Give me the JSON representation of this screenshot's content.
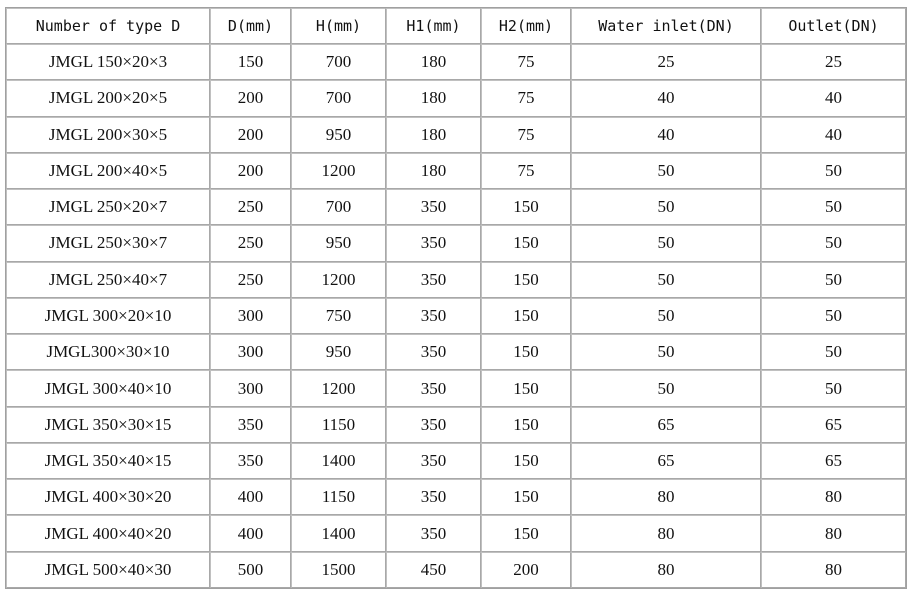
{
  "table": {
    "headers": [
      "Number of type D",
      "D(mm)",
      "H(mm)",
      "H1(mm)",
      "H2(mm)",
      "Water inlet(DN)",
      "Outlet(DN)"
    ],
    "rows": [
      [
        "JMGL 150×20×3",
        "150",
        "700",
        "180",
        "75",
        "25",
        "25"
      ],
      [
        "JMGL 200×20×5",
        "200",
        "700",
        "180",
        "75",
        "40",
        "40"
      ],
      [
        "JMGL 200×30×5",
        "200",
        "950",
        "180",
        "75",
        "40",
        "40"
      ],
      [
        "JMGL 200×40×5",
        "200",
        "1200",
        "180",
        "75",
        "50",
        "50"
      ],
      [
        "JMGL 250×20×7",
        "250",
        "700",
        "350",
        "150",
        "50",
        "50"
      ],
      [
        "JMGL 250×30×7",
        "250",
        "950",
        "350",
        "150",
        "50",
        "50"
      ],
      [
        "JMGL 250×40×7",
        "250",
        "1200",
        "350",
        "150",
        "50",
        "50"
      ],
      [
        "JMGL 300×20×10",
        "300",
        "750",
        "350",
        "150",
        "50",
        "50"
      ],
      [
        "JMGL300×30×10",
        "300",
        "950",
        "350",
        "150",
        "50",
        "50"
      ],
      [
        "JMGL 300×40×10",
        "300",
        "1200",
        "350",
        "150",
        "50",
        "50"
      ],
      [
        "JMGL 350×30×15",
        "350",
        "1150",
        "350",
        "150",
        "65",
        "65"
      ],
      [
        "JMGL 350×40×15",
        "350",
        "1400",
        "350",
        "150",
        "65",
        "65"
      ],
      [
        "JMGL 400×30×20",
        "400",
        "1150",
        "350",
        "150",
        "80",
        "80"
      ],
      [
        "JMGL 400×40×20",
        "400",
        "1400",
        "350",
        "150",
        "80",
        "80"
      ],
      [
        "JMGL 500×40×30",
        "500",
        "1500",
        "450",
        "200",
        "80",
        "80"
      ]
    ]
  }
}
